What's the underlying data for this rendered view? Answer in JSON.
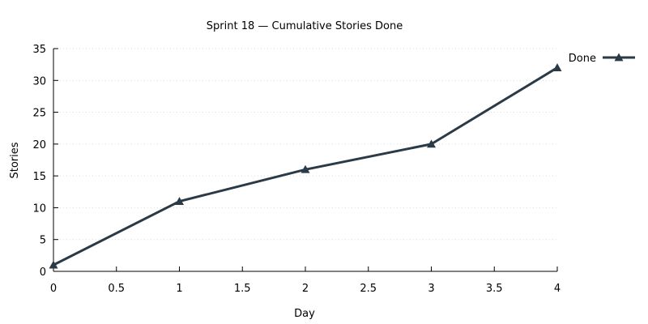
{
  "chart_data": {
    "type": "line",
    "title": "Sprint 18 — Cumulative Stories Done",
    "xlabel": "Day",
    "ylabel": "Stories",
    "xlim": [
      0,
      4
    ],
    "ylim": [
      0,
      35
    ],
    "x_ticks": [
      "0",
      "0.5",
      "1",
      "1.5",
      "2",
      "2.5",
      "3",
      "3.5",
      "4"
    ],
    "y_ticks": [
      "0",
      "5",
      "10",
      "15",
      "20",
      "25",
      "30",
      "35"
    ],
    "x_tick_values": [
      0,
      0.5,
      1,
      1.5,
      2,
      2.5,
      3,
      3.5,
      4
    ],
    "y_tick_values": [
      0,
      5,
      10,
      15,
      20,
      25,
      30,
      35
    ],
    "grid": true,
    "legend_position": "top-right",
    "series": [
      {
        "name": "Done",
        "x": [
          0,
          1,
          2,
          3,
          4
        ],
        "values": [
          1,
          11,
          16,
          20,
          32
        ],
        "color": "#2b3a47",
        "marker": "triangle"
      }
    ]
  }
}
